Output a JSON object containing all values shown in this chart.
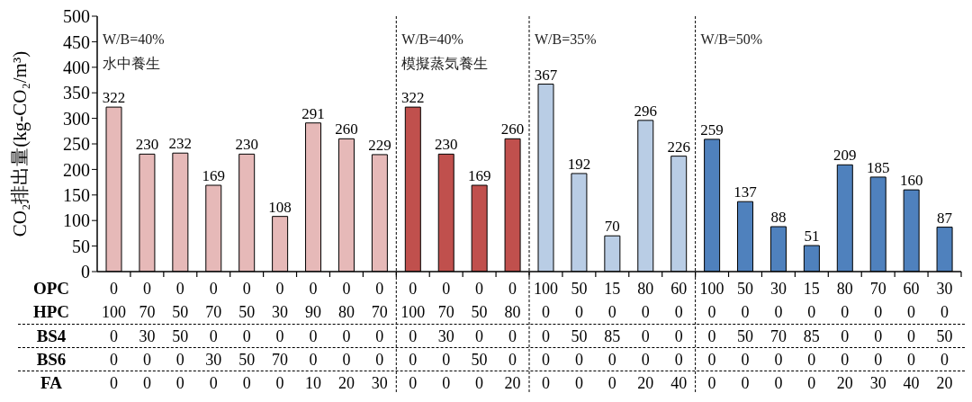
{
  "chart_data": {
    "type": "bar",
    "ylabel": "CO₂排出量(kg-CO₂/m³)",
    "categories": [
      null,
      null,
      null,
      null,
      null,
      null,
      null,
      null,
      null,
      null,
      null,
      null,
      null,
      null,
      null,
      null,
      null,
      null,
      null,
      null,
      null,
      null,
      null,
      null,
      null,
      null
    ],
    "values": [
      322,
      230,
      232,
      169,
      230,
      108,
      291,
      260,
      229,
      322,
      230,
      169,
      260,
      367,
      192,
      70,
      296,
      226,
      259,
      137,
      88,
      51,
      209,
      185,
      160,
      87
    ],
    "colors": [
      "#e6b9b8",
      "#e6b9b8",
      "#e6b9b8",
      "#e6b9b8",
      "#e6b9b8",
      "#e6b9b8",
      "#e6b9b8",
      "#e6b9b8",
      "#e6b9b8",
      "#c0504d",
      "#c0504d",
      "#c0504d",
      "#c0504d",
      "#b9cde5",
      "#b9cde5",
      "#b9cde5",
      "#b9cde5",
      "#b9cde5",
      "#4f81bd",
      "#4f81bd",
      "#4f81bd",
      "#4f81bd",
      "#4f81bd",
      "#4f81bd",
      "#4f81bd",
      "#4f81bd"
    ],
    "ylim": [
      0,
      500
    ],
    "yticks": [
      0,
      50,
      100,
      150,
      200,
      250,
      300,
      350,
      400,
      450,
      500
    ],
    "data_labels": true,
    "annotations": [
      "W/B=40%\n水中養生",
      "W/B=40%\n模擬蒸気養生",
      "W/B=35%",
      "W/B=50%",
      "OPC",
      "0",
      "0",
      "0",
      "0",
      "0",
      "0",
      "0",
      "0",
      "0",
      "0",
      "0",
      "0",
      "0",
      "100",
      "50",
      "15",
      "80",
      "60",
      "100",
      "50",
      "30",
      "15",
      "80",
      "70",
      "60",
      "30",
      "HPC",
      "100",
      "70",
      "50",
      "70",
      "50",
      "30",
      "90",
      "80",
      "70",
      "100",
      "70",
      "50",
      "80",
      "0",
      "0",
      "0",
      "0",
      "0",
      "0",
      "0",
      "0",
      "0",
      "0",
      "0",
      "0",
      "0",
      "BS4",
      "0",
      "30",
      "50",
      "0",
      "0",
      "0",
      "0",
      "0",
      "0",
      "0",
      "30",
      "0",
      "0",
      "0",
      "50",
      "85",
      "0",
      "0",
      "0",
      "50",
      "70",
      "85",
      "0",
      "0",
      "0",
      "50",
      "BS6",
      "0",
      "0",
      "0",
      "30",
      "50",
      "70",
      "0",
      "0",
      "0",
      "0",
      "0",
      "50",
      "0",
      "0",
      "0",
      "0",
      "0",
      "0",
      "0",
      "0",
      "0",
      "0",
      "0",
      "0",
      "0",
      "0",
      "FA",
      "0",
      "0",
      "0",
      "0",
      "0",
      "0",
      "10",
      "20",
      "30",
      "0",
      "0",
      "0",
      "20",
      "0",
      "0",
      "0",
      "20",
      "40",
      "0",
      "0",
      "0",
      "0",
      "20",
      "30",
      "40",
      "20"
    ]
  }
}
